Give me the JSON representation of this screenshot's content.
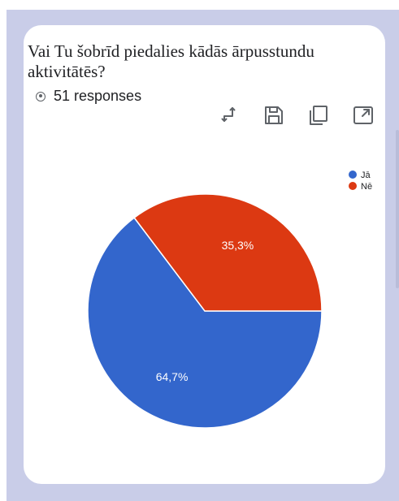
{
  "card": {
    "title": "Vai Tu šobrīd piedalies kādās ārpusstundu aktivitātēs?",
    "responses": "51 responses"
  },
  "toolbar": {
    "icons": [
      "swap-icon",
      "save-icon",
      "copy-icon",
      "expand-icon"
    ]
  },
  "chart_data": {
    "type": "pie",
    "categories": [
      "Jā",
      "Nē"
    ],
    "values": [
      64.7,
      35.3
    ],
    "labels": [
      "64,7%",
      "35,3%"
    ],
    "colors": [
      "#3366cc",
      "#dc3912"
    ],
    "legend_position": "top-right"
  }
}
